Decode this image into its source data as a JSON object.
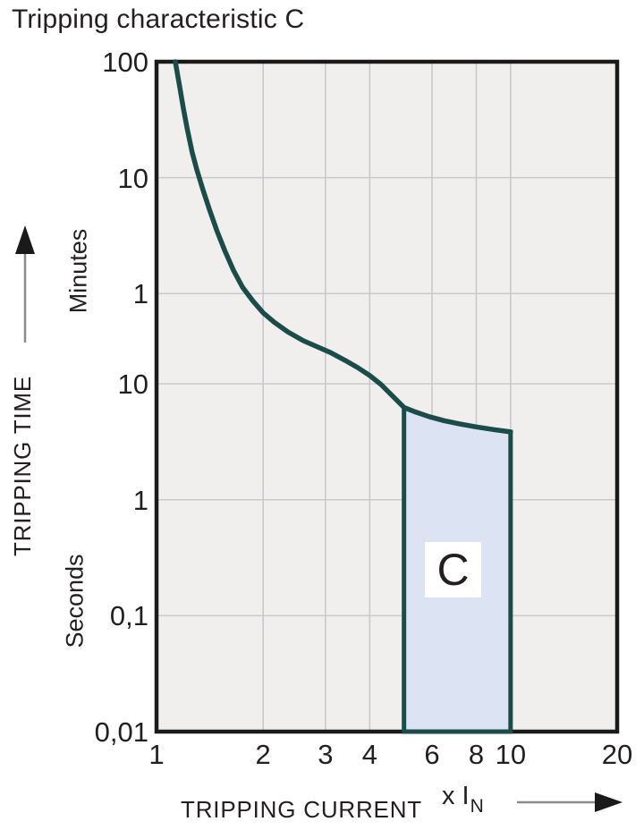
{
  "chart_data": {
    "type": "line",
    "title": "Tripping characteristic C",
    "x_axis": {
      "label": "TRIPPING CURRENT",
      "unit": {
        "prefix": "x I",
        "sub": "N"
      },
      "scale": "log",
      "range": [
        1,
        20
      ],
      "ticks": [
        {
          "label": "1",
          "value": 1
        },
        {
          "label": "2",
          "value": 2
        },
        {
          "label": "3",
          "value": 3
        },
        {
          "label": "4",
          "value": 4
        },
        {
          "label": "6",
          "value": 6
        },
        {
          "label": "8",
          "value": 8
        },
        {
          "label": "10",
          "value": 10
        },
        {
          "label": "20",
          "value": 20
        }
      ],
      "gridlines": [
        2,
        3,
        4,
        6,
        8,
        10
      ]
    },
    "y_axis": {
      "label": "TRIPPING TIME",
      "scale": "log",
      "range_seconds": [
        0.01,
        6000
      ],
      "tick_groups": [
        {
          "unit": "Minutes",
          "ticks": [
            {
              "label": "100",
              "seconds": 6000
            },
            {
              "label": "10",
              "seconds": 600
            },
            {
              "label": "1",
              "seconds": 60
            }
          ]
        },
        {
          "unit": "Seconds",
          "ticks": [
            {
              "label": "10",
              "seconds": 10
            },
            {
              "label": "1",
              "seconds": 1
            },
            {
              "label": "0,1",
              "seconds": 0.1
            },
            {
              "label": "0,01",
              "seconds": 0.01
            }
          ]
        }
      ]
    },
    "series": [
      {
        "name": "tripping-curve",
        "points_current_vs_seconds": [
          [
            1.13,
            6000
          ],
          [
            1.16,
            3800
          ],
          [
            1.19,
            2400
          ],
          [
            1.22,
            1600
          ],
          [
            1.26,
            1000
          ],
          [
            1.3,
            700
          ],
          [
            1.35,
            480
          ],
          [
            1.41,
            320
          ],
          [
            1.48,
            210
          ],
          [
            1.56,
            140
          ],
          [
            1.65,
            95
          ],
          [
            1.75,
            68
          ],
          [
            1.87,
            52
          ],
          [
            2.0,
            41
          ],
          [
            2.15,
            34
          ],
          [
            2.35,
            28
          ],
          [
            2.6,
            23.5
          ],
          [
            2.85,
            20.8
          ],
          [
            3.1,
            18.6
          ],
          [
            3.4,
            16
          ],
          [
            3.7,
            13.8
          ],
          [
            4.0,
            11.8
          ],
          [
            4.3,
            9.9
          ],
          [
            4.65,
            7.8
          ],
          [
            5.0,
            6.25
          ],
          [
            5.4,
            5.7
          ],
          [
            5.9,
            5.2
          ],
          [
            6.5,
            4.8
          ],
          [
            7.2,
            4.5
          ],
          [
            8.0,
            4.25
          ],
          [
            9.0,
            4.02
          ],
          [
            10.0,
            3.85
          ]
        ]
      }
    ],
    "region": {
      "label": "C",
      "x_range": [
        5,
        10
      ],
      "top_boundary": "curve",
      "bottom_seconds": 0.01
    },
    "legend": "none",
    "grid": "on"
  },
  "colors": {
    "curve": "#1a4d49",
    "region_fill": "#dce3f3",
    "plot_background": "#f0efee",
    "gridline": "#c9c9cd",
    "plot_border": "#1a1a1a",
    "text": "#231f20",
    "arrow_line": "#8a8a8a",
    "arrow_head": "#1a1a1a"
  }
}
